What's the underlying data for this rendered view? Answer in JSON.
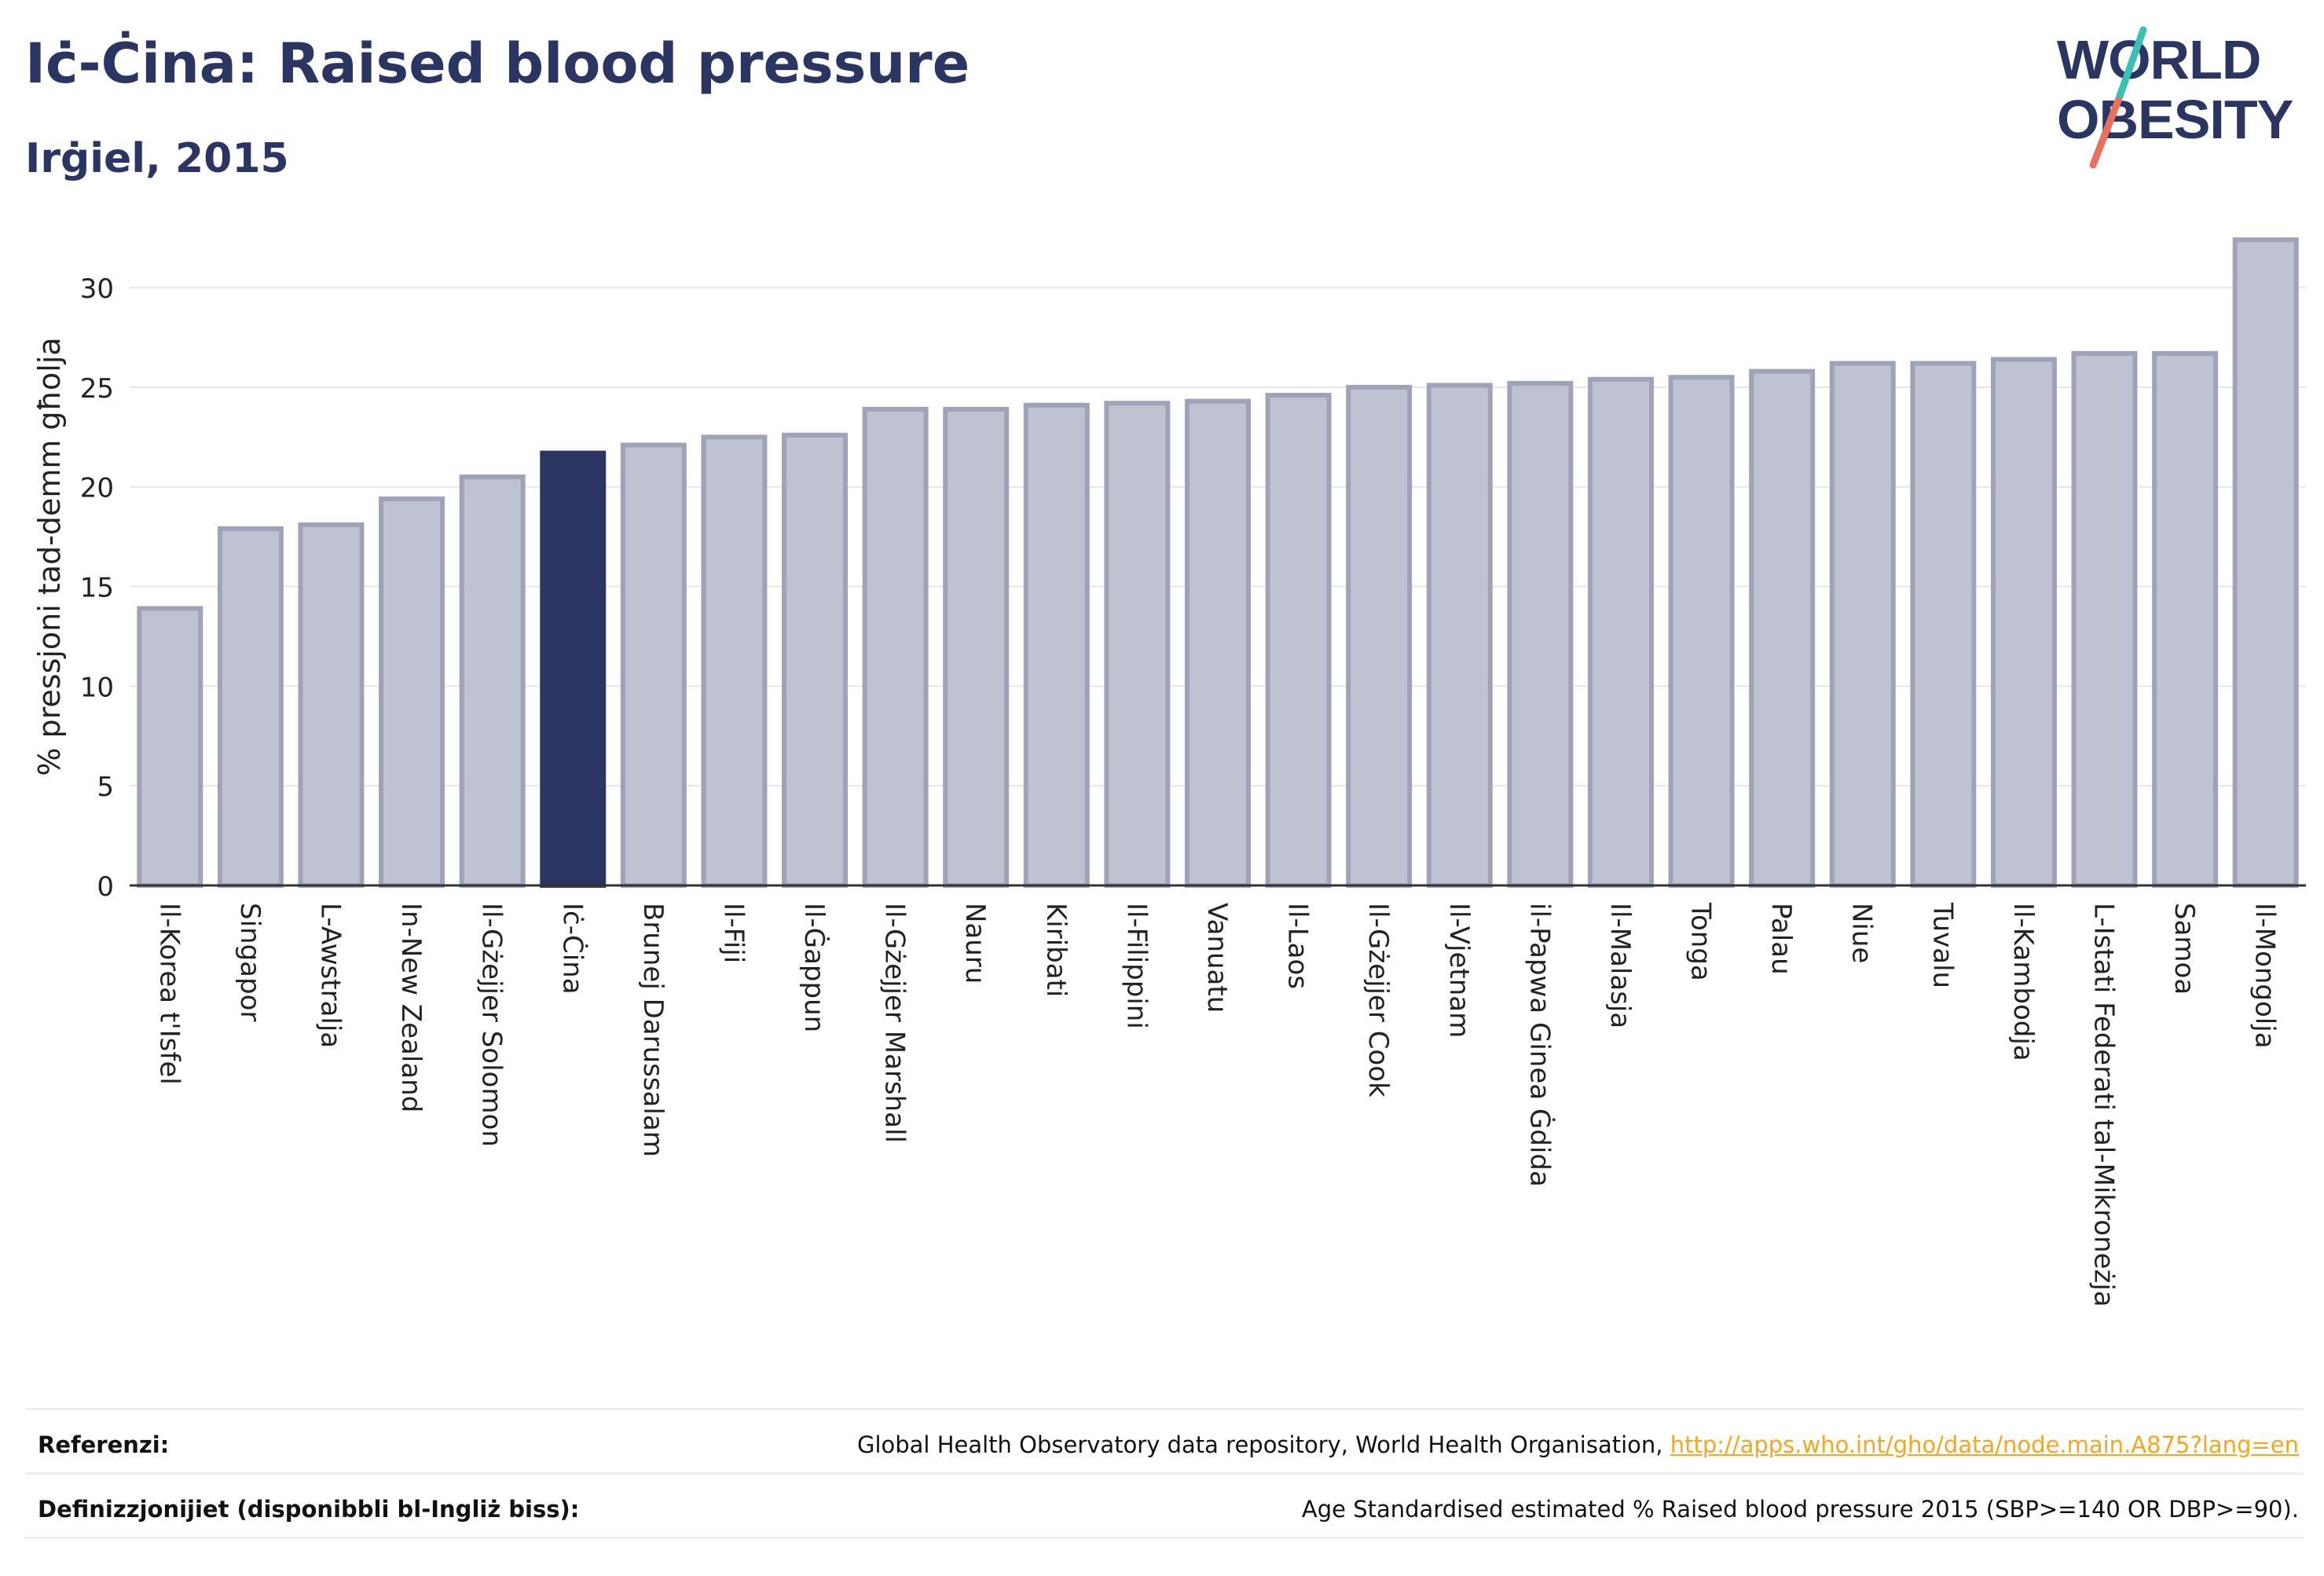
{
  "header": {
    "title": "Iċ-Ċina: Raised blood pressure",
    "subtitle": "Irġiel, 2015"
  },
  "logo": {
    "line1": "WORLD",
    "line2": "OBESITY",
    "colors": {
      "text": "#2b3561",
      "slash_teal": "#3cbfb4",
      "slash_coral": "#e8705f"
    }
  },
  "colors": {
    "bar": "#bfc2d0",
    "bar_border": "#9ea3b8",
    "highlight": "#2b3561",
    "grid": "#e6e7ee",
    "axis": "#333333",
    "text": "#222222"
  },
  "chart_data": {
    "type": "bar",
    "title": "",
    "xlabel": "",
    "ylabel": "% pressjoni tad-demm għolja",
    "ylim": [
      0,
      33
    ],
    "yticks": [
      0,
      5,
      10,
      15,
      20,
      25,
      30
    ],
    "grid": true,
    "highlight": "Iċ-Ċina",
    "categories": [
      "Il-Korea t'Isfel",
      "Singapor",
      "L-Awstralja",
      "In-New Zealand",
      "Il-Gżejjer Solomon",
      "Iċ-Ċina",
      "Brunej Darussalam",
      "Il-Fiji",
      "Il-Ġappun",
      "Il-Gżejjer Marshall",
      "Nauru",
      "Kiribati",
      "Il-Filippini",
      "Vanuatu",
      "Il-Laos",
      "Il-Gżejjer Cook",
      "Il-Vjetnam",
      "il-Papwa Ginea Ġdida",
      "Il-Malasja",
      "Tonga",
      "Palau",
      "Niue",
      "Tuvalu",
      "Il-Kambodja",
      "L-Istati Federati tal-Mikroneżja",
      "Samoa",
      "Il-Mongolja"
    ],
    "values": [
      13.9,
      17.9,
      18.1,
      19.4,
      20.5,
      21.7,
      22.1,
      22.5,
      22.6,
      23.9,
      23.9,
      24.1,
      24.2,
      24.3,
      24.6,
      25.0,
      25.1,
      25.2,
      25.4,
      25.5,
      25.8,
      26.2,
      26.2,
      26.4,
      26.7,
      26.7,
      32.4
    ]
  },
  "footer": {
    "references_label": "Referenzi:",
    "references_text": "Global Health Observatory data repository, World Health Organisation, ",
    "references_link": "http://apps.who.int/gho/data/node.main.A875?lang=en",
    "definitions_label": "Definizzjonijiet (disponibbli bl-Ingliż biss):",
    "definitions_text": "Age Standardised estimated % Raised blood pressure 2015 (SBP>=140 OR DBP>=90)."
  }
}
